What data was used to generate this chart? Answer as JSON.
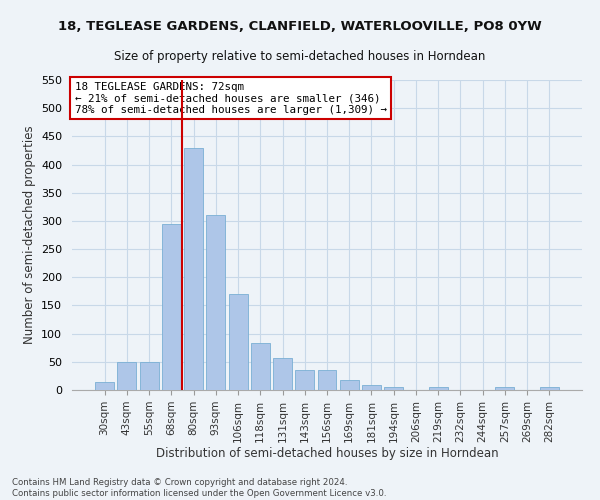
{
  "title1": "18, TEGLEASE GARDENS, CLANFIELD, WATERLOOVILLE, PO8 0YW",
  "title2": "Size of property relative to semi-detached houses in Horndean",
  "xlabel": "Distribution of semi-detached houses by size in Horndean",
  "ylabel": "Number of semi-detached properties",
  "footnote1": "Contains HM Land Registry data © Crown copyright and database right 2024.",
  "footnote2": "Contains public sector information licensed under the Open Government Licence v3.0.",
  "categories": [
    "30sqm",
    "43sqm",
    "55sqm",
    "68sqm",
    "80sqm",
    "93sqm",
    "106sqm",
    "118sqm",
    "131sqm",
    "143sqm",
    "156sqm",
    "169sqm",
    "181sqm",
    "194sqm",
    "206sqm",
    "219sqm",
    "232sqm",
    "244sqm",
    "257sqm",
    "269sqm",
    "282sqm"
  ],
  "values": [
    15,
    50,
    50,
    295,
    430,
    310,
    170,
    83,
    57,
    35,
    35,
    17,
    8,
    5,
    0,
    6,
    0,
    0,
    6,
    0,
    6
  ],
  "bar_color": "#aec6e8",
  "bar_edge_color": "#7aafd4",
  "grid_color": "#c8d8e8",
  "background_color": "#eef3f8",
  "vline_x": 3.5,
  "vline_color": "#cc0000",
  "annotation_title": "18 TEGLEASE GARDENS: 72sqm",
  "annotation_line2": "← 21% of semi-detached houses are smaller (346)",
  "annotation_line3": "78% of semi-detached houses are larger (1,309) →",
  "annotation_box_color": "#cc0000",
  "ylim": [
    0,
    550
  ],
  "yticks": [
    0,
    50,
    100,
    150,
    200,
    250,
    300,
    350,
    400,
    450,
    500,
    550
  ]
}
